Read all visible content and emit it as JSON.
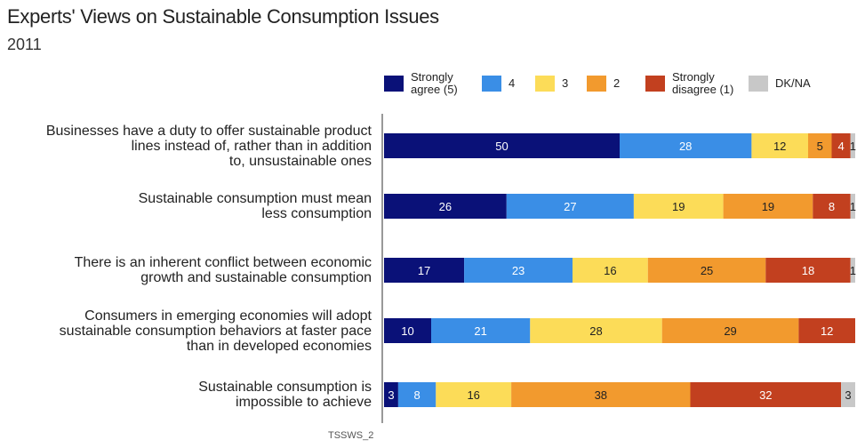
{
  "title": "Experts' Views on Sustainable Consumption Issues",
  "subtitle": "2011",
  "footnote": "TSSWS_2",
  "legend": [
    {
      "label_lines": [
        "Strongly",
        "agree (5)"
      ],
      "color": "#0a1178"
    },
    {
      "label_lines": [
        "4"
      ],
      "color": "#3a8ee6"
    },
    {
      "label_lines": [
        "3"
      ],
      "color": "#fcdc58"
    },
    {
      "label_lines": [
        "2"
      ],
      "color": "#f29a2e"
    },
    {
      "label_lines": [
        "Strongly",
        "disagree (1)"
      ],
      "color": "#c2401f"
    },
    {
      "label_lines": [
        "DK/NA"
      ],
      "color": "#c8c8c8"
    }
  ],
  "chart_data": {
    "type": "bar",
    "orientation": "horizontal",
    "stacked": true,
    "title": "Experts' Views on Sustainable Consumption Issues",
    "subtitle": "2011",
    "categories": [
      [
        "Businesses have a duty to offer sustainable product",
        "lines instead of, rather than in addition",
        "to, unsustainable ones"
      ],
      [
        "Sustainable consumption must mean",
        "less consumption"
      ],
      [
        "There is an inherent conflict between economic",
        "growth and sustainable consumption"
      ],
      [
        "Consumers in emerging economies will adopt",
        "sustainable consumption behaviors at faster pace",
        "than in developed economies"
      ],
      [
        "Sustainable consumption is",
        "impossible to achieve"
      ]
    ],
    "series": [
      {
        "name": "Strongly agree (5)",
        "color": "#0a1178",
        "values": [
          50,
          26,
          17,
          10,
          3
        ]
      },
      {
        "name": "4",
        "color": "#3a8ee6",
        "values": [
          28,
          27,
          23,
          21,
          8
        ]
      },
      {
        "name": "3",
        "color": "#fcdc58",
        "values": [
          12,
          19,
          16,
          28,
          16
        ]
      },
      {
        "name": "2",
        "color": "#f29a2e",
        "values": [
          5,
          19,
          25,
          29,
          38
        ]
      },
      {
        "name": "Strongly disagree (1)",
        "color": "#c2401f",
        "values": [
          4,
          8,
          18,
          12,
          32
        ]
      },
      {
        "name": "DK/NA",
        "color": "#c8c8c8",
        "values": [
          1,
          1,
          1,
          0,
          3
        ]
      }
    ],
    "xlim": [
      0,
      100
    ],
    "legend_position": "top-right",
    "grid": false
  }
}
